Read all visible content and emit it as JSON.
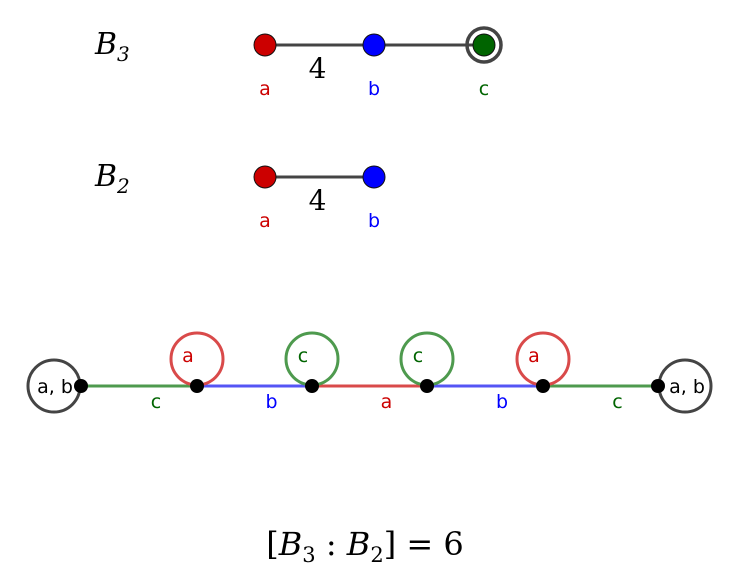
{
  "colors": {
    "a": "#cc0000",
    "b": "#0000ff",
    "c": "#006400",
    "edge_a": "#d94a4a",
    "edge_b": "#5555f5",
    "edge_c": "#4e9a4e",
    "ring": "#444444"
  },
  "diagrams": [
    {
      "name_base": "B",
      "name_sub": "3",
      "nodes": [
        {
          "label": "a",
          "fill": "#cc0000"
        },
        {
          "label": "b",
          "fill": "#0000ff"
        },
        {
          "label": "c",
          "fill": "#006400",
          "ringed": true
        }
      ],
      "edge_weights": [
        "4",
        ""
      ]
    },
    {
      "name_base": "B",
      "name_sub": "2",
      "nodes": [
        {
          "label": "a",
          "fill": "#cc0000"
        },
        {
          "label": "b",
          "fill": "#0000ff"
        }
      ],
      "edge_weights": [
        "4"
      ]
    }
  ],
  "graph": {
    "end_label_left": "a, b",
    "end_label_right": "a, b",
    "edges": [
      {
        "label": "c",
        "color": "c"
      },
      {
        "label": "b",
        "color": "b"
      },
      {
        "label": "a",
        "color": "a"
      },
      {
        "label": "b",
        "color": "b"
      },
      {
        "label": "c",
        "color": "c"
      }
    ],
    "loops": [
      {
        "label": "a",
        "color": "a"
      },
      {
        "label": "c",
        "color": "c"
      },
      {
        "label": "c",
        "color": "c"
      },
      {
        "label": "a",
        "color": "a"
      }
    ]
  },
  "equation": {
    "open": "[",
    "b1": "B",
    "s1": "3",
    "colon": " : ",
    "b2": "B",
    "s2": "2",
    "close": "]",
    "eq": " = ",
    "value": "6"
  }
}
